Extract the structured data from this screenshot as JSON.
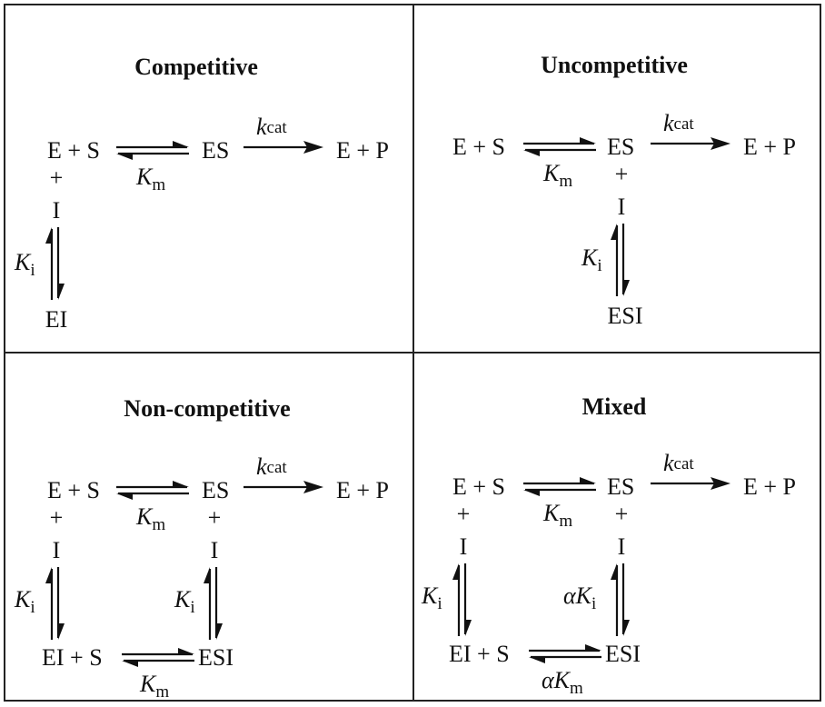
{
  "panels": {
    "competitive": {
      "title": "Competitive",
      "e_s": "E + S",
      "es": "ES",
      "e_p": "E + P",
      "plus": "+",
      "inhibitor": "I",
      "ei": "EI",
      "kcat": {
        "sym": "k",
        "sub": "cat"
      },
      "km": {
        "sym": "K",
        "sub": "m"
      },
      "ki": {
        "sym": "K",
        "sub": "i"
      }
    },
    "uncompetitive": {
      "title": "Uncompetitive",
      "e_s": "E + S",
      "es": "ES",
      "e_p": "E + P",
      "plus": "+",
      "inhibitor": "I",
      "esi": "ESI",
      "kcat": {
        "sym": "k",
        "sub": "cat"
      },
      "km": {
        "sym": "K",
        "sub": "m"
      },
      "ki": {
        "sym": "K",
        "sub": "i"
      }
    },
    "noncompetitive": {
      "title": "Non-competitive",
      "e_s": "E + S",
      "es": "ES",
      "e_p": "E + P",
      "plus_left": "+",
      "plus_right": "+",
      "inhibitor_left": "I",
      "inhibitor_right": "I",
      "ei_s": "EI + S",
      "esi": "ESI",
      "kcat": {
        "sym": "k",
        "sub": "cat"
      },
      "km_top": {
        "sym": "K",
        "sub": "m"
      },
      "km_bottom": {
        "sym": "K",
        "sub": "m"
      },
      "ki_left": {
        "sym": "K",
        "sub": "i"
      },
      "ki_right": {
        "sym": "K",
        "sub": "i"
      }
    },
    "mixed": {
      "title": "Mixed",
      "e_s": "E + S",
      "es": "ES",
      "e_p": "E + P",
      "plus_left": "+",
      "plus_right": "+",
      "inhibitor_left": "I",
      "inhibitor_right": "I",
      "ei_s": "EI + S",
      "esi": "ESI",
      "kcat": {
        "sym": "k",
        "sub": "cat"
      },
      "km": {
        "sym": "K",
        "sub": "m"
      },
      "ki_left": {
        "sym": "K",
        "sub": "i"
      },
      "alpha_ki": {
        "pre": "α",
        "sym": "K",
        "sub": "i"
      },
      "alpha_km": {
        "pre": "α",
        "sym": "K",
        "sub": "m"
      }
    }
  }
}
